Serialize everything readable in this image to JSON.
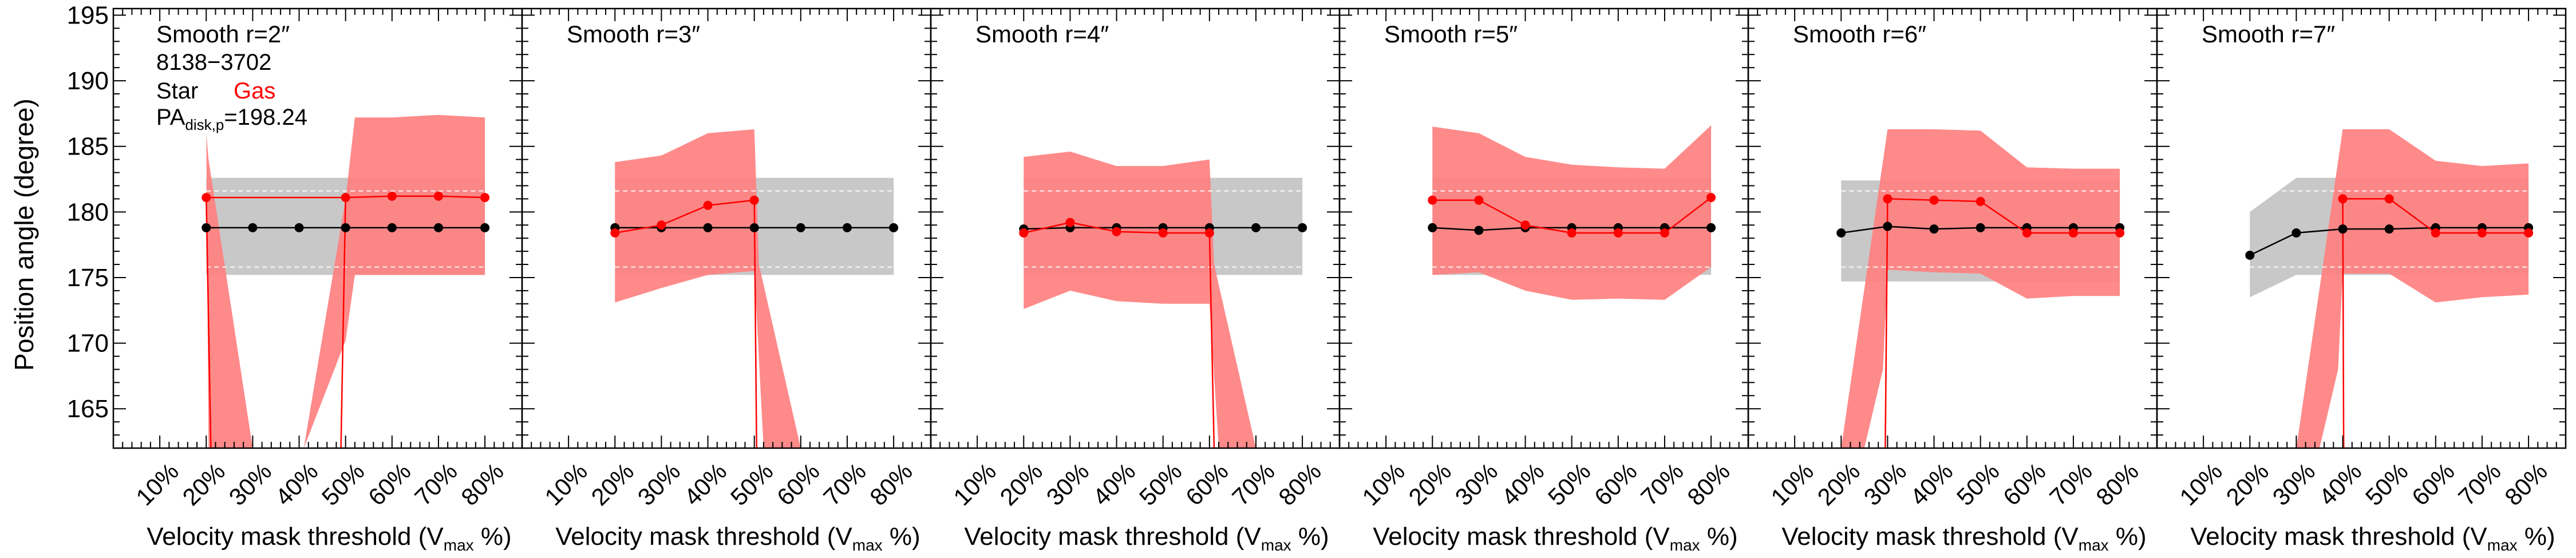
{
  "figure": {
    "ylabel": "Position angle (degree)",
    "xlabel": "Velocity mask threshold (V",
    "xlabel_sub": "max",
    "xlabel_tail": " %)",
    "x_tick_labels": [
      "10%",
      "20%",
      "30%",
      "40%",
      "50%",
      "60%",
      "70%",
      "80%"
    ],
    "y_tick_labels": [
      "165",
      "170",
      "175",
      "180",
      "185",
      "190",
      "195"
    ],
    "galaxy_id": "8138−3702",
    "legend_star": "Star",
    "legend_gas": "Gas",
    "pa_label_main": "PA",
    "pa_label_sub": "disk,p",
    "pa_label_value": "=198.24",
    "colors": {
      "star": "#000000",
      "gas": "#ff0000",
      "gas_band": "#ff8080",
      "star_band": "#c8c8c8",
      "band_edge": "#ffffff"
    }
  },
  "chart_data": [
    {
      "type": "line",
      "title": "Smooth r=2″",
      "x": [
        10,
        20,
        30,
        40,
        50,
        60,
        70,
        80
      ],
      "xlim": [
        0,
        88
      ],
      "ylim": [
        162,
        195.5
      ],
      "star_band": {
        "x": [
          20,
          80
        ],
        "lower": 175.2,
        "upper": 182.6,
        "mid": [
          175.8,
          181.6
        ]
      },
      "series": [
        {
          "name": "Star",
          "x": [
            20,
            30,
            40,
            50,
            60,
            70,
            80
          ],
          "values": [
            178.8,
            178.8,
            178.8,
            178.8,
            178.8,
            178.8,
            178.8
          ]
        },
        {
          "name": "Gas",
          "x": [
            20,
            50,
            60,
            70,
            80
          ],
          "values": [
            181.1,
            181.1,
            181.2,
            181.2,
            181.1
          ]
        }
      ],
      "gas_band": [
        [
          [
            20,
            186
          ],
          [
            20.5,
            184
          ],
          [
            30,
            162
          ],
          [
            20.5,
            162
          ]
        ],
        [
          [
            41,
            162
          ],
          [
            50,
            181
          ],
          [
            52,
            187.2
          ],
          [
            60,
            187.2
          ],
          [
            70,
            187.4
          ],
          [
            80,
            187.2
          ],
          [
            80,
            175.2
          ],
          [
            52,
            175.2
          ],
          [
            50,
            170.2
          ]
        ]
      ],
      "gas_drop_lines": [
        [
          [
            20,
            181.1
          ],
          [
            21,
            162
          ]
        ],
        [
          [
            50,
            181.1
          ],
          [
            49,
            162
          ]
        ]
      ]
    },
    {
      "type": "line",
      "title": "Smooth r=3″",
      "x": [
        10,
        20,
        30,
        40,
        50,
        60,
        70,
        80
      ],
      "xlim": [
        0,
        88
      ],
      "ylim": [
        162,
        195.5
      ],
      "star_band": {
        "x": [
          20,
          80
        ],
        "lower": 175.2,
        "upper": 182.6,
        "mid": [
          175.8,
          181.6
        ]
      },
      "series": [
        {
          "name": "Star",
          "x": [
            20,
            30,
            40,
            50,
            60,
            70,
            80
          ],
          "values": [
            178.8,
            178.8,
            178.8,
            178.8,
            178.8,
            178.8,
            178.8
          ]
        },
        {
          "name": "Gas",
          "x": [
            20,
            30,
            40,
            50
          ],
          "values": [
            178.4,
            179.0,
            180.5,
            180.9
          ]
        }
      ],
      "gas_band": [
        [
          [
            20,
            183.8
          ],
          [
            30,
            184.3
          ],
          [
            40,
            186.0
          ],
          [
            50,
            186.3
          ],
          [
            51,
            176
          ],
          [
            60,
            162
          ],
          [
            52,
            162
          ],
          [
            50,
            175.5
          ],
          [
            40,
            175.2
          ],
          [
            30,
            174.2
          ],
          [
            20,
            173.1
          ]
        ]
      ],
      "gas_drop_lines": [
        [
          [
            50,
            180.9
          ],
          [
            50.5,
            162
          ]
        ]
      ]
    },
    {
      "type": "line",
      "title": "Smooth r=4″",
      "x": [
        10,
        20,
        30,
        40,
        50,
        60,
        70,
        80
      ],
      "xlim": [
        0,
        88
      ],
      "ylim": [
        162,
        195.5
      ],
      "star_band": {
        "x": [
          20,
          80
        ],
        "lower": 175.2,
        "upper": 182.6,
        "mid": [
          175.8,
          181.6
        ]
      },
      "series": [
        {
          "name": "Star",
          "x": [
            20,
            30,
            40,
            50,
            60,
            70,
            80
          ],
          "values": [
            178.7,
            178.8,
            178.8,
            178.8,
            178.8,
            178.8,
            178.8
          ]
        },
        {
          "name": "Gas",
          "x": [
            20,
            30,
            40,
            50,
            60
          ],
          "values": [
            178.4,
            179.2,
            178.5,
            178.4,
            178.4
          ]
        }
      ],
      "gas_band": [
        [
          [
            20,
            184.2
          ],
          [
            30,
            184.6
          ],
          [
            40,
            183.5
          ],
          [
            50,
            183.5
          ],
          [
            60,
            184.0
          ],
          [
            61,
            176
          ],
          [
            70,
            162
          ],
          [
            62,
            162
          ],
          [
            60,
            173.0
          ],
          [
            50,
            173.0
          ],
          [
            40,
            173.2
          ],
          [
            30,
            174.0
          ],
          [
            20,
            172.6
          ]
        ]
      ],
      "gas_drop_lines": [
        [
          [
            60,
            178.4
          ],
          [
            61,
            162
          ]
        ]
      ]
    },
    {
      "type": "line",
      "title": "Smooth r=5″",
      "x": [
        10,
        20,
        30,
        40,
        50,
        60,
        70,
        80
      ],
      "xlim": [
        0,
        88
      ],
      "ylim": [
        162,
        195.5
      ],
      "star_band": {
        "x": [
          20,
          80
        ],
        "lower": 175.2,
        "upper": 182.6,
        "mid": [
          175.8,
          181.6
        ]
      },
      "series": [
        {
          "name": "Star",
          "x": [
            20,
            30,
            40,
            50,
            60,
            70,
            80
          ],
          "values": [
            178.8,
            178.6,
            178.8,
            178.8,
            178.8,
            178.8,
            178.8
          ]
        },
        {
          "name": "Gas",
          "x": [
            20,
            30,
            40,
            50,
            60,
            70,
            80
          ],
          "values": [
            180.9,
            180.9,
            179.0,
            178.4,
            178.4,
            178.4,
            181.1
          ]
        }
      ],
      "gas_band": [
        [
          [
            20,
            186.5
          ],
          [
            30,
            186.0
          ],
          [
            40,
            184.2
          ],
          [
            50,
            183.6
          ],
          [
            60,
            183.4
          ],
          [
            70,
            183.3
          ],
          [
            80,
            186.6
          ],
          [
            80,
            175.8
          ],
          [
            70,
            173.3
          ],
          [
            60,
            173.4
          ],
          [
            50,
            173.3
          ],
          [
            40,
            174.0
          ],
          [
            30,
            175.4
          ],
          [
            20,
            175.2
          ]
        ]
      ],
      "gas_drop_lines": []
    },
    {
      "type": "line",
      "title": "Smooth r=6″",
      "x": [
        10,
        20,
        30,
        40,
        50,
        60,
        70,
        80
      ],
      "xlim": [
        0,
        88
      ],
      "ylim": [
        162,
        195.5
      ],
      "star_band": {
        "x": [
          20,
          80
        ],
        "lower": 174.7,
        "upper": 182.4,
        "mid": [
          175.8,
          181.6
        ]
      },
      "series": [
        {
          "name": "Star",
          "x": [
            20,
            30,
            40,
            50,
            60,
            70,
            80
          ],
          "values": [
            178.4,
            178.9,
            178.7,
            178.8,
            178.8,
            178.8,
            178.8
          ]
        },
        {
          "name": "Gas",
          "x": [
            30,
            40,
            50,
            60,
            70,
            80
          ],
          "values": [
            181.0,
            180.9,
            180.8,
            178.4,
            178.4,
            178.4
          ]
        }
      ],
      "gas_band": [
        [
          [
            20,
            162
          ],
          [
            30,
            186.3
          ],
          [
            40,
            186.3
          ],
          [
            50,
            186.2
          ],
          [
            60,
            183.4
          ],
          [
            70,
            183.3
          ],
          [
            80,
            183.3
          ],
          [
            80,
            173.6
          ],
          [
            70,
            173.6
          ],
          [
            60,
            173.4
          ],
          [
            50,
            175.3
          ],
          [
            40,
            175.4
          ],
          [
            30,
            175.6
          ],
          [
            29,
            168
          ],
          [
            25,
            162
          ]
        ]
      ],
      "gas_drop_lines": [
        [
          [
            30,
            181.0
          ],
          [
            29.5,
            162
          ]
        ]
      ]
    },
    {
      "type": "line",
      "title": "Smooth r=7″",
      "x": [
        10,
        20,
        30,
        40,
        50,
        60,
        70,
        80
      ],
      "xlim": [
        0,
        88
      ],
      "ylim": [
        162,
        195.5
      ],
      "star_band": {
        "x": [
          20,
          80
        ],
        "lower": 175.2,
        "upper": 182.6,
        "mid": [
          175.8,
          181.6
        ],
        "left_x": 20,
        "left_upper": 180.0,
        "left_lower": 173.5
      },
      "series": [
        {
          "name": "Star",
          "x": [
            20,
            30,
            40,
            50,
            60,
            70,
            80
          ],
          "values": [
            176.7,
            178.4,
            178.7,
            178.7,
            178.8,
            178.8,
            178.8
          ]
        },
        {
          "name": "Gas",
          "x": [
            40,
            50,
            60,
            70,
            80
          ],
          "values": [
            181.0,
            181.0,
            178.4,
            178.4,
            178.4
          ]
        }
      ],
      "gas_band": [
        [
          [
            30,
            162
          ],
          [
            40,
            186.3
          ],
          [
            50,
            186.3
          ],
          [
            60,
            183.9
          ],
          [
            70,
            183.5
          ],
          [
            80,
            183.7
          ],
          [
            80,
            173.7
          ],
          [
            70,
            173.5
          ],
          [
            60,
            173.1
          ],
          [
            50,
            175.3
          ],
          [
            40,
            175.3
          ],
          [
            39,
            168
          ],
          [
            35,
            162
          ]
        ]
      ],
      "gas_drop_lines": [
        [
          [
            40,
            181.0
          ],
          [
            40.2,
            162
          ]
        ]
      ]
    }
  ]
}
